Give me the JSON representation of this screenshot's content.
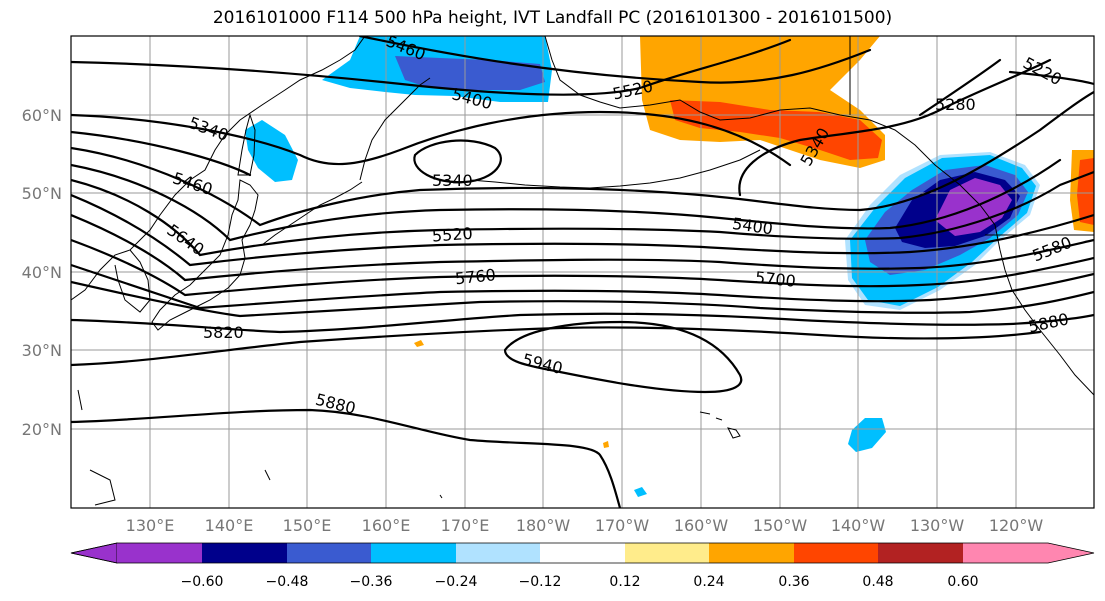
{
  "title": "2016101000 F114 500 hPa height, IVT Landfall PC (2016101300 - 2016101500)",
  "map": {
    "lat_labels": [
      "60°N",
      "50°N",
      "40°N",
      "30°N",
      "20°N"
    ],
    "lon_labels": [
      "130°E",
      "140°E",
      "150°E",
      "160°E",
      "170°E",
      "180°W",
      "170°W",
      "160°W",
      "150°W",
      "140°W",
      "130°W",
      "120°W"
    ],
    "contour_labels": [
      "5460",
      "5400",
      "5520",
      "5280",
      "5220",
      "5340",
      "5340",
      "5460",
      "5340",
      "5640",
      "5520",
      "5400",
      "5580",
      "5760",
      "5700",
      "5820",
      "5880",
      "5940",
      "5880"
    ]
  },
  "colorbar": {
    "colors": [
      "#9932cc",
      "#00008b",
      "#3a5bd0",
      "#00bfff",
      "#b0e2ff",
      "#ffffff",
      "#ffec8b",
      "#ffa500",
      "#ff4500",
      "#b22222",
      "#ff86b0"
    ],
    "tick_labels": [
      "−0.60",
      "−0.48",
      "−0.36",
      "−0.24",
      "−0.12",
      "0.12",
      "0.24",
      "0.36",
      "0.48",
      "0.60"
    ]
  }
}
